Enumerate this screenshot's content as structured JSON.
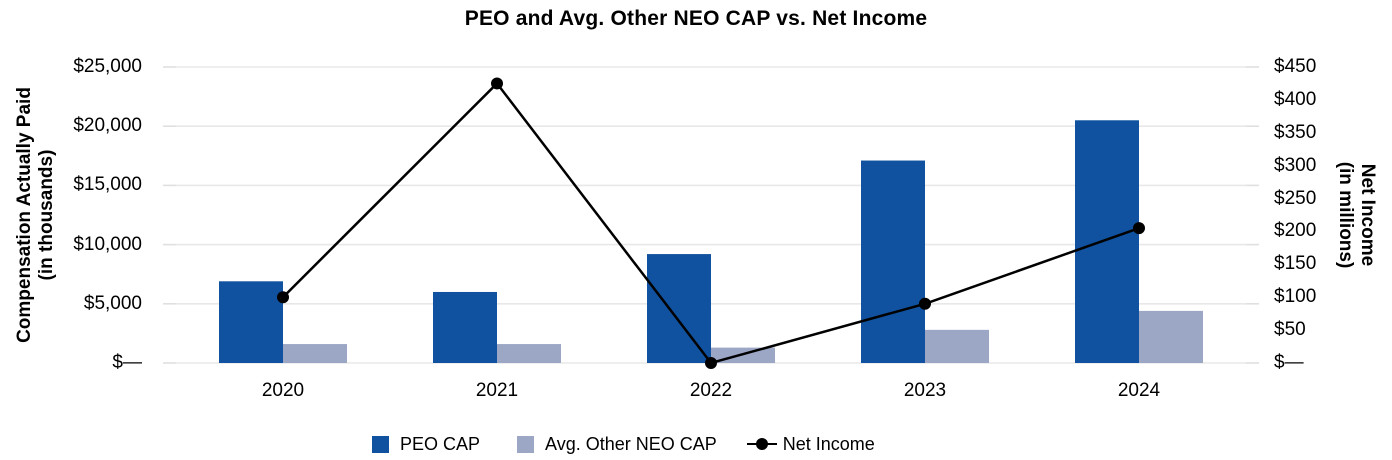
{
  "chart_data": {
    "type": "combo-bar-line",
    "title": "PEO and Avg. Other NEO CAP vs. Net Income",
    "categories": [
      "2020",
      "2021",
      "2022",
      "2023",
      "2024"
    ],
    "series": [
      {
        "name": "PEO CAP",
        "type": "bar",
        "axis": "left",
        "color": "#10529F",
        "values": [
          6900,
          6000,
          9200,
          17100,
          20500
        ]
      },
      {
        "name": "Avg. Other NEO CAP",
        "type": "bar",
        "axis": "left",
        "color": "#9CA7C6",
        "values": [
          1600,
          1600,
          1300,
          2800,
          4400
        ]
      },
      {
        "name": "Net Income",
        "type": "line",
        "axis": "right",
        "color": "#000000",
        "marker": "circle",
        "values": [
          100,
          425,
          0,
          90,
          205
        ]
      }
    ],
    "left_axis": {
      "title_line1": "Compensation Actually Paid",
      "title_line2": "(in thousands)",
      "range": [
        0,
        25000
      ],
      "tick_values": [
        0,
        5000,
        10000,
        15000,
        20000,
        25000
      ],
      "tick_labels": [
        "$—",
        "$5,000",
        "$10,000",
        "$15,000",
        "$20,000",
        "$25,000"
      ]
    },
    "right_axis": {
      "title_line1": "Net Income",
      "title_line2": "(in millions)",
      "range": [
        0,
        450
      ],
      "tick_values": [
        0,
        50,
        100,
        150,
        200,
        250,
        300,
        350,
        400,
        450
      ],
      "tick_labels": [
        "$—",
        "$50",
        "$100",
        "$150",
        "$200",
        "$250",
        "$300",
        "$350",
        "$400",
        "$450"
      ]
    },
    "gridlines": "horizontal",
    "grid_color": "#E8E8E8",
    "legend_position": "bottom"
  }
}
